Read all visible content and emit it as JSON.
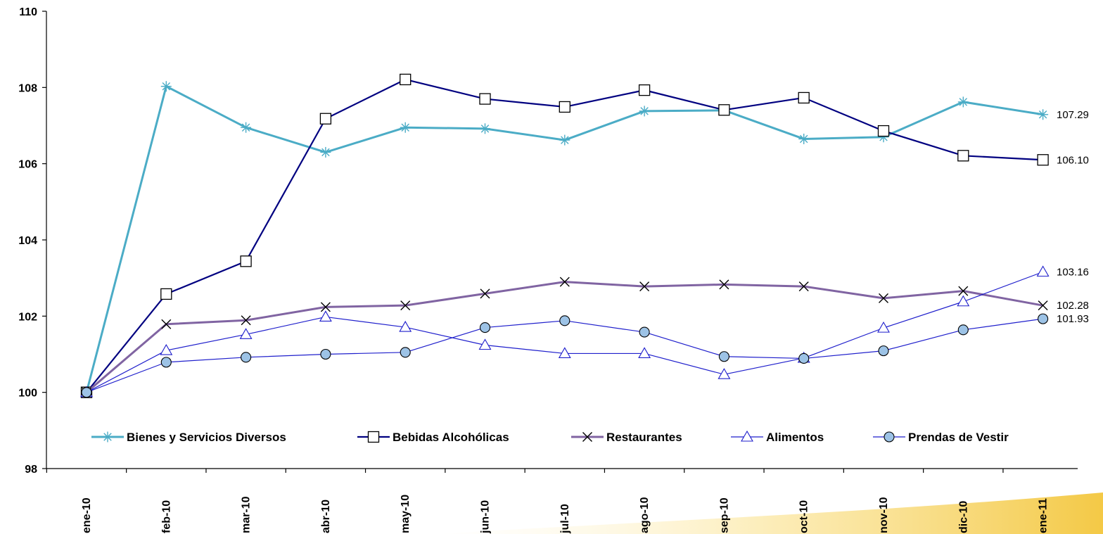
{
  "chart_data": {
    "type": "line",
    "title": "",
    "xlabel": "",
    "ylabel": "",
    "ylim": [
      98,
      110
    ],
    "yticks": [
      "98",
      "100",
      "102",
      "104",
      "106",
      "108",
      "110"
    ],
    "grid": false,
    "legend_position": "bottom-inside",
    "categories": [
      "ene-10",
      "feb-10",
      "mar-10",
      "abr-10",
      "may-10",
      "jun-10",
      "jul-10",
      "ago-10",
      "sep-10",
      "oct-10",
      "nov-10",
      "dic-10",
      "ene-11"
    ],
    "series": [
      {
        "name": "Bienes y Servicios Diversos",
        "color": "#4BACC6",
        "marker": "asterisk",
        "values": [
          100.0,
          108.03,
          106.95,
          106.3,
          106.95,
          106.92,
          106.62,
          107.38,
          107.4,
          106.65,
          106.7,
          107.62,
          107.29
        ],
        "end_label": "107.29"
      },
      {
        "name": "Bebidas Alcohólicas",
        "color": "#000080",
        "marker": "square",
        "values": [
          100.0,
          102.58,
          103.44,
          107.18,
          108.21,
          107.7,
          107.49,
          107.93,
          107.41,
          107.73,
          106.86,
          106.21,
          106.1
        ],
        "end_label": "106.10"
      },
      {
        "name": "Restaurantes",
        "color": "#8064A2",
        "marker": "x",
        "values": [
          100.0,
          101.79,
          101.89,
          102.24,
          102.28,
          102.59,
          102.9,
          102.78,
          102.83,
          102.78,
          102.47,
          102.66,
          102.28
        ],
        "end_label": "102.28"
      },
      {
        "name": "Alimentos",
        "color": "#1F1FCC",
        "marker": "triangle",
        "values": [
          100.0,
          101.1,
          101.52,
          101.98,
          101.71,
          101.24,
          101.02,
          101.02,
          100.47,
          100.9,
          101.69,
          102.38,
          103.16
        ],
        "end_label": "103.16"
      },
      {
        "name": "Prendas de Vestir",
        "color": "#1F1FCC",
        "marker": "circle",
        "values": [
          100.0,
          100.79,
          100.92,
          101.0,
          101.05,
          101.7,
          101.88,
          101.58,
          100.94,
          100.89,
          101.09,
          101.64,
          101.93
        ],
        "end_label": "101.93"
      }
    ]
  }
}
